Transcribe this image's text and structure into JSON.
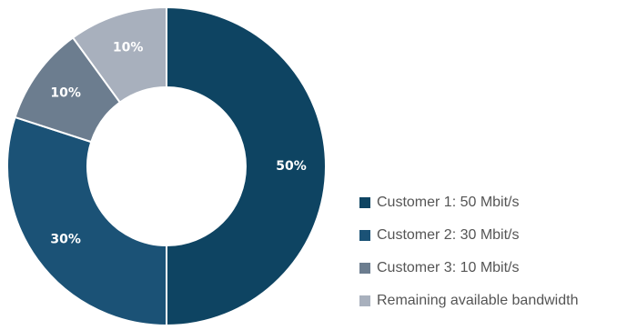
{
  "chart_data": {
    "type": "pie",
    "variant": "donut",
    "title": "",
    "slices": [
      {
        "label": "Customer 1: 50 Mbit/s",
        "value": 50,
        "display": "50%",
        "color": "#0e4462"
      },
      {
        "label": "Customer 2: 30 Mbit/s",
        "value": 30,
        "display": "30%",
        "color": "#1b5276"
      },
      {
        "label": "Customer 3: 10 Mbit/s",
        "value": 10,
        "display": "10%",
        "color": "#6c7d8f"
      },
      {
        "label": "Remaining available bandwidth",
        "value": 10,
        "display": "10%",
        "color": "#a8b0bd"
      }
    ],
    "legend_position": "right",
    "start_angle_deg": 0,
    "direction": "clockwise"
  }
}
